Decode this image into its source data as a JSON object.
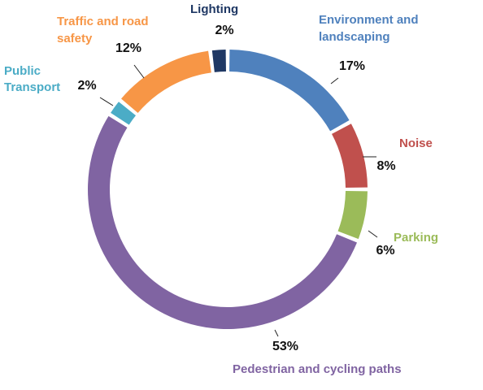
{
  "chart_data": {
    "type": "pie",
    "style": "donut",
    "unit": "%",
    "series": [
      {
        "name": "Environment and landscaping",
        "value": 17,
        "label": "17%",
        "color": "#4F81BD"
      },
      {
        "name": "Noise",
        "value": 8,
        "label": "8%",
        "color": "#C0504D"
      },
      {
        "name": "Parking",
        "value": 6,
        "label": "6%",
        "color": "#9BBB59"
      },
      {
        "name": "Pedestrian and cycling paths",
        "value": 53,
        "label": "53%",
        "color": "#8064A2"
      },
      {
        "name": "Public Transport",
        "value": 2,
        "label": "2%",
        "color": "#4BACC6"
      },
      {
        "name": "Traffic and road safety",
        "value": 12,
        "label": "12%",
        "color": "#F79646"
      },
      {
        "name": "Lighting",
        "value": 2,
        "label": "2%",
        "color": "#1F3864"
      }
    ]
  }
}
